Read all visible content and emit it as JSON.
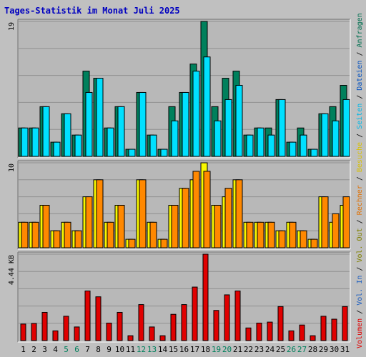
{
  "chart_data": {
    "type": "bar",
    "title": "Tages-Statistik im Monat Juli 2025",
    "categories": [
      "1",
      "2",
      "3",
      "4",
      "5",
      "6",
      "7",
      "8",
      "9",
      "10",
      "11",
      "12",
      "13",
      "14",
      "15",
      "16",
      "17",
      "18",
      "19",
      "20",
      "21",
      "22",
      "23",
      "24",
      "25",
      "26",
      "27",
      "28",
      "29",
      "30",
      "31"
    ],
    "weekend_days": [
      "5",
      "6",
      "12",
      "13",
      "19",
      "20",
      "26",
      "27"
    ],
    "panels": [
      {
        "max_label": "19",
        "ymax": 19,
        "series": [
          {
            "name": "Anfragen",
            "color": "#00805c",
            "values": [
              4,
              4,
              7,
              2,
              6,
              3,
              12,
              11,
              4,
              7,
              1,
              9,
              3,
              1,
              7,
              9,
              13,
              19,
              7,
              11,
              12,
              3,
              4,
              4,
              8,
              2,
              4,
              1,
              6,
              7,
              10
            ]
          },
          {
            "name": "Dateien",
            "color": "#00e0ff",
            "values": [
              4,
              4,
              7,
              2,
              6,
              3,
              9,
              11,
              4,
              7,
              1,
              9,
              3,
              1,
              5,
              9,
              12,
              14,
              5,
              8,
              10,
              3,
              4,
              3,
              8,
              2,
              3,
              1,
              6,
              5,
              8
            ]
          },
          {
            "name": "Seiten",
            "color": "#00c8e8",
            "values": []
          }
        ]
      },
      {
        "max_label": "10",
        "ymax": 10,
        "series": [
          {
            "name": "Besuche",
            "color": "#f8f800",
            "values": [
              3,
              3,
              5,
              2,
              3,
              2,
              6,
              8,
              3,
              5,
              1,
              8,
              3,
              1,
              5,
              7,
              8,
              10,
              5,
              6,
              8,
              3,
              3,
              3,
              2,
              3,
              2,
              1,
              6,
              3,
              5
            ]
          },
          {
            "name": "Rechner",
            "color": "#ff8800",
            "values": [
              3,
              3,
              5,
              2,
              3,
              2,
              6,
              8,
              3,
              5,
              1,
              8,
              3,
              1,
              5,
              7,
              9,
              9,
              5,
              7,
              8,
              3,
              3,
              3,
              2,
              3,
              2,
              1,
              6,
              4,
              6
            ]
          }
        ]
      },
      {
        "max_label": "4.44 KB",
        "ymax": 4.44,
        "series": [
          {
            "name": "Volumen",
            "color": "#e00000",
            "values": [
              0.85,
              0.88,
              1.45,
              0.5,
              1.25,
              0.7,
              2.55,
              2.25,
              0.9,
              1.45,
              0.25,
              1.85,
              0.7,
              0.25,
              1.35,
              1.85,
              2.75,
              4.44,
              1.55,
              2.35,
              2.55,
              0.65,
              0.9,
              0.95,
              1.75,
              0.5,
              0.8,
              0.25,
              1.25,
              1.1,
              1.75
            ]
          }
        ]
      }
    ],
    "legend": [
      {
        "label": "Anfragen",
        "color": "#007050"
      },
      {
        "label": "Dateien",
        "color": "#0050c0"
      },
      {
        "label": "Seiten",
        "color": "#00b8e8"
      },
      {
        "label": "Besuche",
        "color": "#d8c000"
      },
      {
        "label": "Rechner",
        "color": "#e07000"
      },
      {
        "label": "Vol. Out",
        "color": "#808000"
      },
      {
        "label": "Vol. In",
        "color": "#2060c0"
      },
      {
        "label": "Volumen",
        "color": "#e00000"
      }
    ],
    "legend_separator": " / ",
    "grid": true,
    "colors": {
      "background": "#c0c0c0",
      "panel": "#b8b8b8",
      "title": "#0000c0",
      "weekend_label": "#00805c",
      "weekday_label": "#000000"
    }
  }
}
